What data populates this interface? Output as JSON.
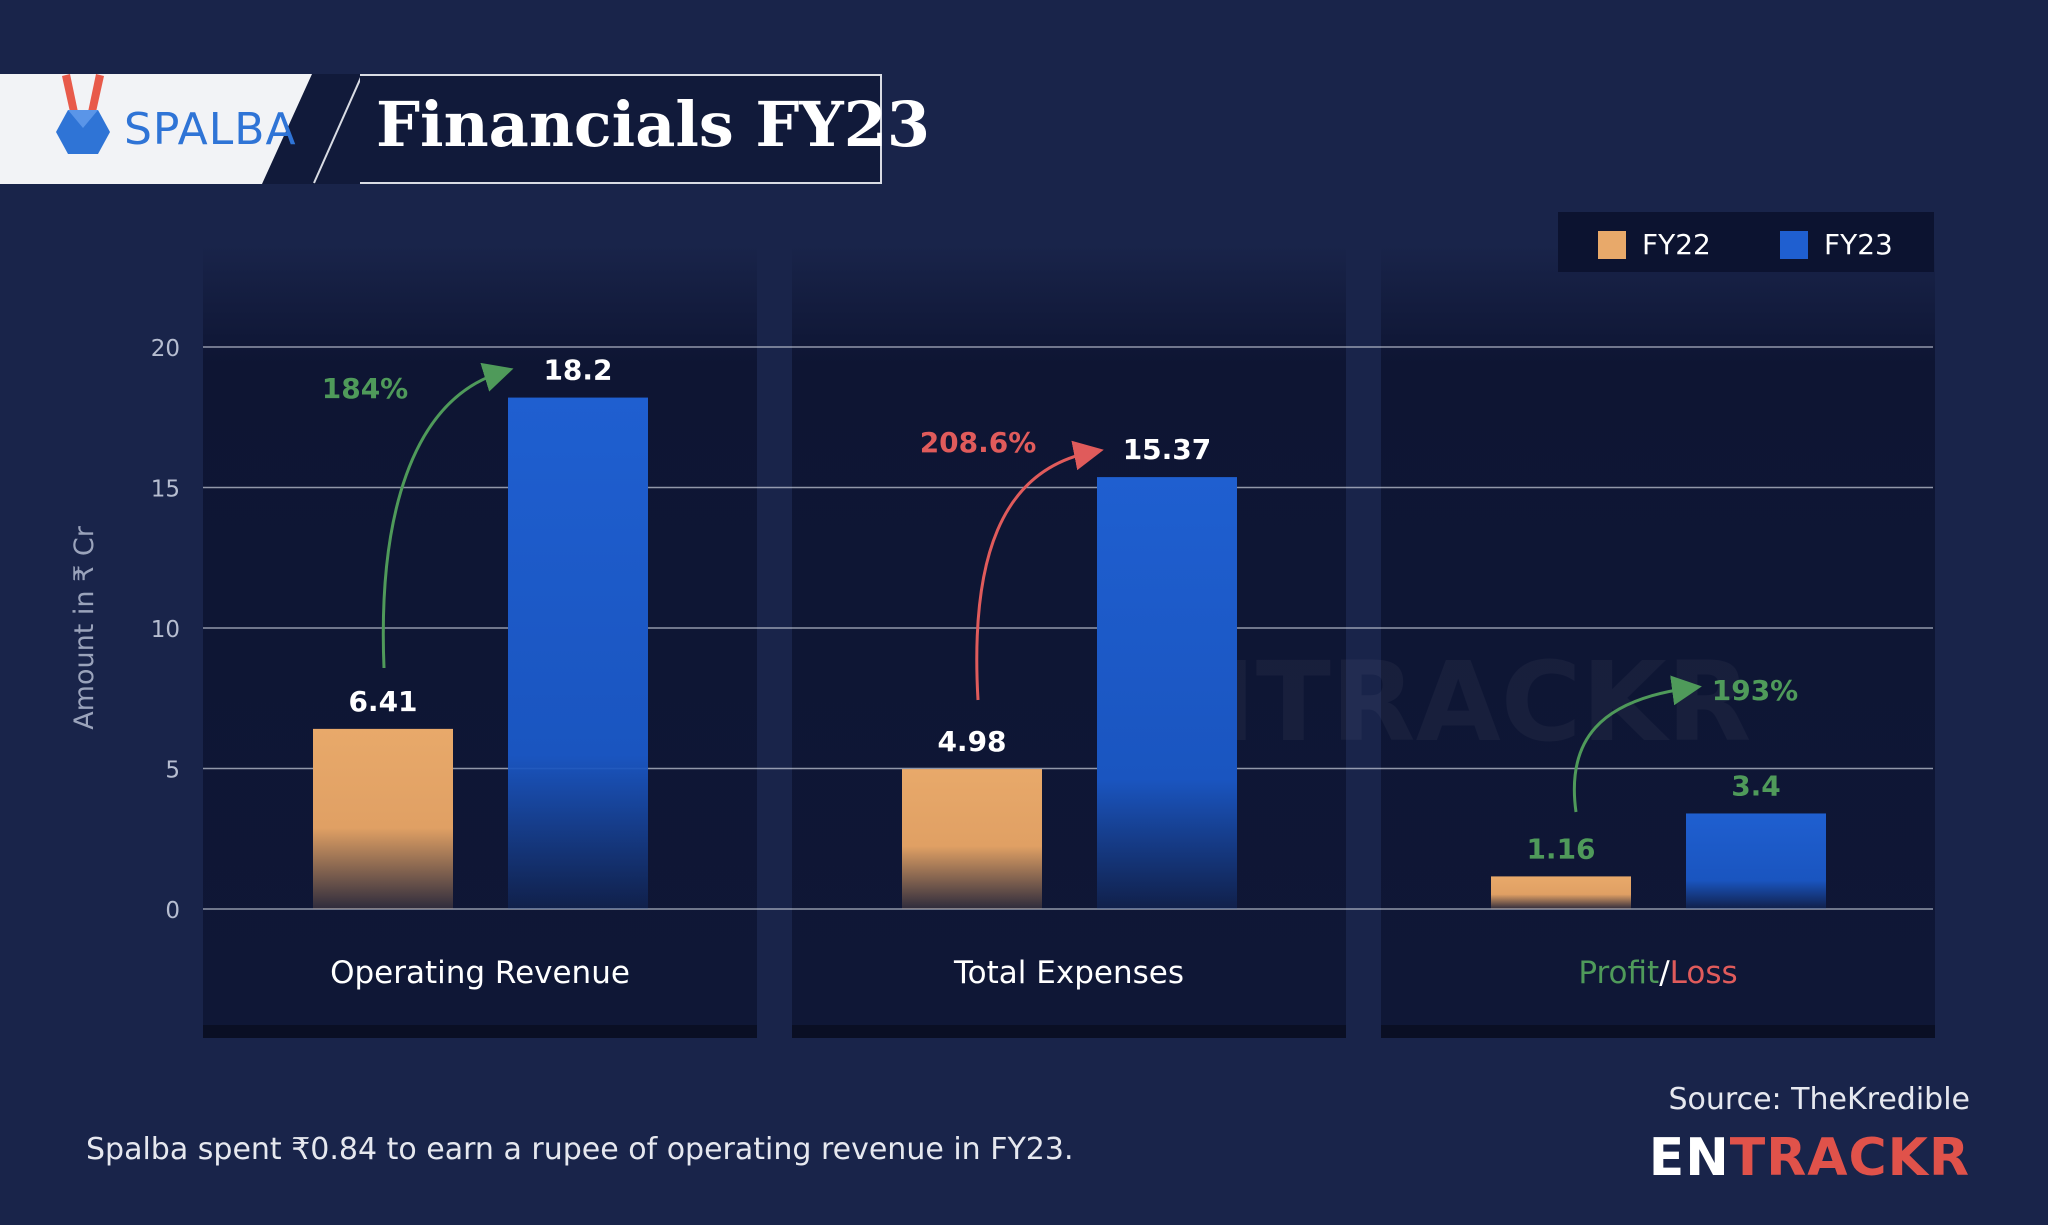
{
  "header": {
    "brand": "SPALBA",
    "title": "Financials FY23"
  },
  "legend": [
    {
      "label": "FY22",
      "color": "#e8a96a"
    },
    {
      "label": "FY23",
      "color": "#1f5fd0"
    }
  ],
  "chart_data": {
    "type": "bar",
    "ylabel": "Amount in ₹ Cr",
    "ylim": [
      0,
      20
    ],
    "yticks": [
      0,
      5,
      10,
      15,
      20
    ],
    "categories": [
      "Operating Revenue",
      "Total Expenses",
      "Profit/Loss"
    ],
    "series": [
      {
        "name": "FY22",
        "values": [
          6.41,
          4.98,
          1.16
        ],
        "color": "#e8a96a"
      },
      {
        "name": "FY23",
        "values": [
          18.2,
          15.37,
          3.4
        ],
        "color": "#1f5fd0"
      }
    ],
    "data_labels": [
      [
        "6.41",
        "4.98",
        "1.16"
      ],
      [
        "18.2",
        "15.37",
        "3.4"
      ]
    ],
    "growth_annotations": [
      {
        "text": "184%",
        "color": "#4f9a5a"
      },
      {
        "text": "208.6%",
        "color": "#e05b5b"
      },
      {
        "text": "193%",
        "color": "#4f9a5a"
      }
    ],
    "profit_loss_label": {
      "profit": "Profit",
      "separator": "/",
      "loss": "Loss",
      "profit_color": "#4f9a5a",
      "loss_color": "#e05b5b"
    },
    "grid": true
  },
  "footer": {
    "note": "Spalba spent ₹0.84 to earn a rupee of operating revenue in FY23.",
    "source": "Source: TheKredible",
    "logo_en": "EN",
    "logo_trackr": "TRACKR"
  }
}
